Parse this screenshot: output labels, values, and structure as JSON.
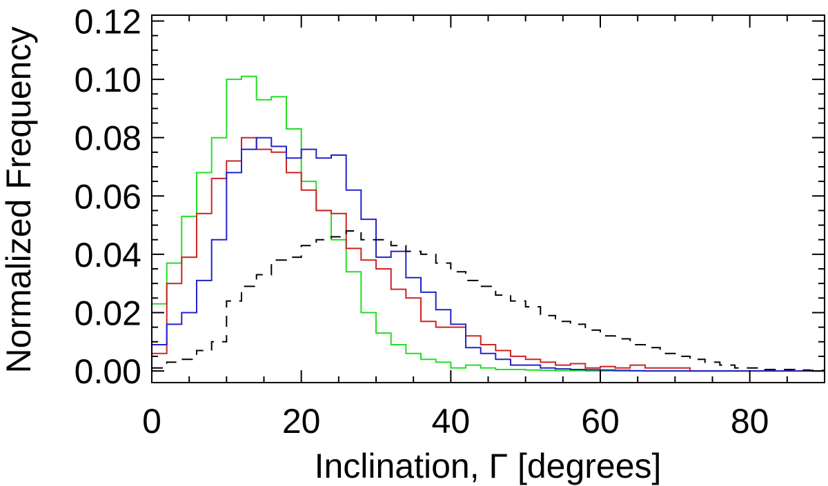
{
  "chart_data": {
    "type": "line",
    "title": "",
    "xlabel": "Inclination, Γ [degrees]",
    "ylabel": "Normalized Frequency",
    "xlim": [
      0,
      90
    ],
    "ylim": [
      -0.004,
      0.122
    ],
    "x_ticks": [
      0,
      20,
      40,
      60,
      80
    ],
    "y_ticks": [
      0.0,
      0.02,
      0.04,
      0.06,
      0.08,
      0.1,
      0.12
    ],
    "x_tick_labels": [
      "0",
      "20",
      "40",
      "60",
      "80"
    ],
    "y_tick_labels": [
      "0.00",
      "0.02",
      "0.04",
      "0.06",
      "0.08",
      "0.10",
      "0.12"
    ],
    "x_minor_step": 5,
    "y_minor_step": 0.005,
    "bin_width": 2,
    "bin_starts": [
      0,
      2,
      4,
      6,
      8,
      10,
      12,
      14,
      16,
      18,
      20,
      22,
      24,
      26,
      28,
      30,
      32,
      34,
      36,
      38,
      40,
      42,
      44,
      46,
      48,
      50,
      52,
      54,
      56,
      58,
      60,
      62,
      64,
      66,
      68,
      70,
      72,
      74,
      76,
      78,
      80,
      82,
      84,
      86,
      88
    ],
    "series": [
      {
        "name": "green",
        "color": "#22dd22",
        "style": "solid",
        "values": [
          0.023,
          0.037,
          0.053,
          0.068,
          0.08,
          0.1,
          0.101,
          0.093,
          0.094,
          0.083,
          0.065,
          0.055,
          0.045,
          0.034,
          0.02,
          0.013,
          0.009,
          0.006,
          0.004,
          0.003,
          0.001,
          0.002,
          0.001,
          0.0005,
          0.0005,
          0.0003,
          0.0002,
          0.0001,
          0.0001,
          0.0,
          0.0,
          0.0,
          0.0,
          0.0,
          0.0,
          0.0,
          0.0,
          0.0,
          0.0,
          0.0,
          0.0,
          0.0,
          0.0,
          0.0,
          0.0
        ]
      },
      {
        "name": "red",
        "color": "#cc2222",
        "style": "solid",
        "values": [
          0.006,
          0.03,
          0.039,
          0.054,
          0.066,
          0.072,
          0.08,
          0.076,
          0.075,
          0.068,
          0.062,
          0.055,
          0.054,
          0.042,
          0.038,
          0.035,
          0.028,
          0.025,
          0.017,
          0.015,
          0.015,
          0.012,
          0.009,
          0.007,
          0.005,
          0.004,
          0.003,
          0.002,
          0.0025,
          0.001,
          0.0015,
          0.001,
          0.002,
          0.001,
          0.001,
          0.001,
          0.0,
          0.0,
          0.0,
          0.0,
          0.0,
          0.0,
          0.0,
          0.0,
          0.0
        ]
      },
      {
        "name": "blue",
        "color": "#2222cc",
        "style": "solid",
        "values": [
          0.009,
          0.016,
          0.02,
          0.031,
          0.045,
          0.068,
          0.076,
          0.08,
          0.077,
          0.073,
          0.076,
          0.073,
          0.074,
          0.062,
          0.052,
          0.039,
          0.041,
          0.032,
          0.027,
          0.021,
          0.016,
          0.008,
          0.006,
          0.004,
          0.002,
          0.002,
          0.001,
          0.0007,
          0.0005,
          0.0004,
          0.0003,
          0.0002,
          0.0001,
          0.0,
          0.0,
          0.0,
          0.0,
          0.0,
          0.0,
          0.0,
          0.0,
          0.0,
          0.0,
          0.0,
          0.0
        ]
      },
      {
        "name": "black-dashed",
        "color": "#000000",
        "style": "dashed",
        "values": [
          0.001,
          0.003,
          0.004,
          0.007,
          0.01,
          0.024,
          0.029,
          0.033,
          0.038,
          0.039,
          0.043,
          0.045,
          0.046,
          0.048,
          0.045,
          0.045,
          0.043,
          0.041,
          0.04,
          0.037,
          0.034,
          0.031,
          0.029,
          0.026,
          0.024,
          0.022,
          0.019,
          0.017,
          0.016,
          0.014,
          0.012,
          0.011,
          0.009,
          0.008,
          0.006,
          0.005,
          0.004,
          0.003,
          0.002,
          0.001,
          0.001,
          0.0005,
          0.0005,
          0.0003,
          0.0002
        ]
      }
    ]
  }
}
